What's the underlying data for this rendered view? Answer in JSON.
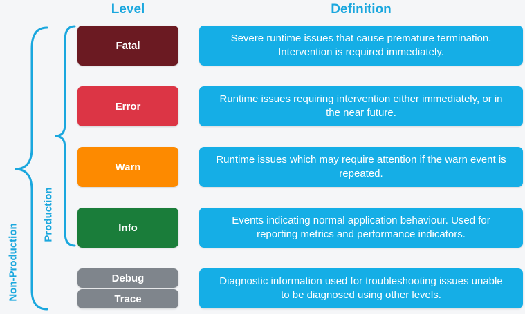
{
  "headers": {
    "level": "Level",
    "definition": "Definition"
  },
  "brace_labels": {
    "production": "Production",
    "non_production": "Non-Production"
  },
  "rows": [
    {
      "level": "Fatal",
      "color": "#6b1a22",
      "definition": "Severe runtime issues that cause premature termination. Intervention is required immediately."
    },
    {
      "level": "Error",
      "color": "#dc3545",
      "definition": "Runtime issues requiring intervention either immediately, or in the near future."
    },
    {
      "level": "Warn",
      "color": "#fd8a00",
      "definition": "Runtime issues which may require attention if the warn event is repeated."
    },
    {
      "level": "Info",
      "color": "#1a7d3a",
      "definition": "Events indicating normal application behaviour. Used for reporting metrics and performance indicators."
    }
  ],
  "debug_trace": {
    "debug_label": "Debug",
    "trace_label": "Trace",
    "color": "#7f858c",
    "definition": "Diagnostic information used for troubleshooting issues unable to be diagnosed using other levels."
  },
  "colors": {
    "accent": "#1aa7de",
    "definition_box": "#15aee6",
    "background": "#f5f6f8"
  }
}
